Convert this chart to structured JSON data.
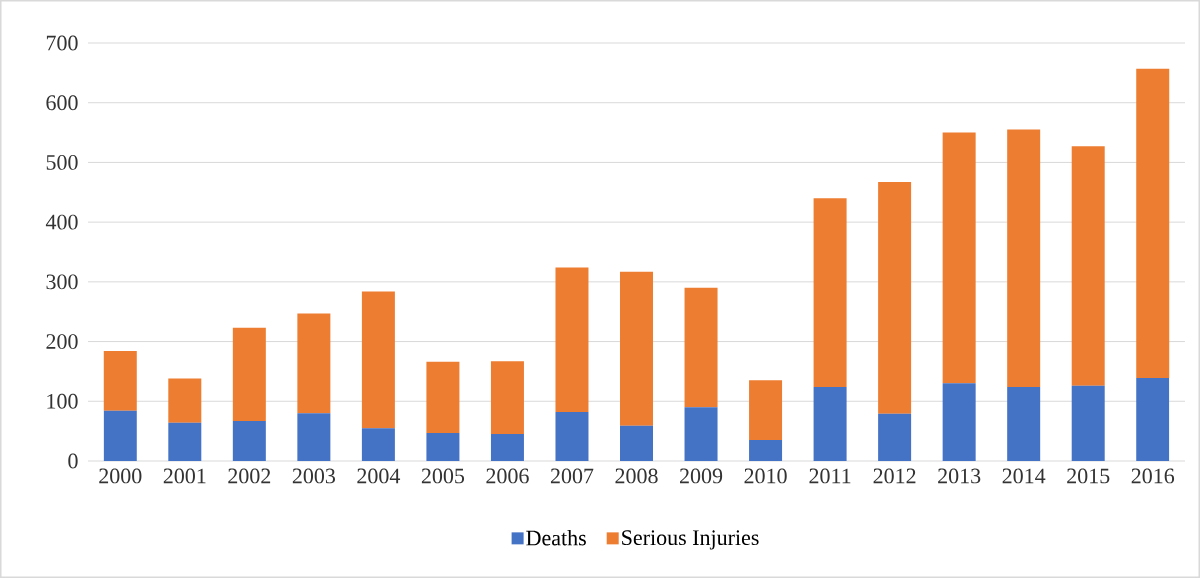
{
  "chart_data": {
    "type": "bar",
    "stacked": true,
    "categories": [
      "2000",
      "2001",
      "2002",
      "2003",
      "2004",
      "2005",
      "2006",
      "2007",
      "2008",
      "2009",
      "2010",
      "2011",
      "2012",
      "2013",
      "2014",
      "2015",
      "2016"
    ],
    "series": [
      {
        "name": "Deaths",
        "color": "#4472c4",
        "values": [
          84,
          64,
          67,
          80,
          55,
          47,
          45,
          82,
          59,
          90,
          35,
          124,
          79,
          130,
          124,
          126,
          139
        ]
      },
      {
        "name": "Serious Injuries",
        "color": "#ed7d31",
        "values": [
          100,
          74,
          156,
          167,
          229,
          119,
          122,
          242,
          258,
          200,
          100,
          316,
          388,
          420,
          431,
          401,
          518
        ]
      }
    ],
    "ylim": [
      0,
      700
    ],
    "yticks": [
      0,
      100,
      200,
      300,
      400,
      500,
      600,
      700
    ],
    "grid": "y",
    "legend": "bottom"
  }
}
